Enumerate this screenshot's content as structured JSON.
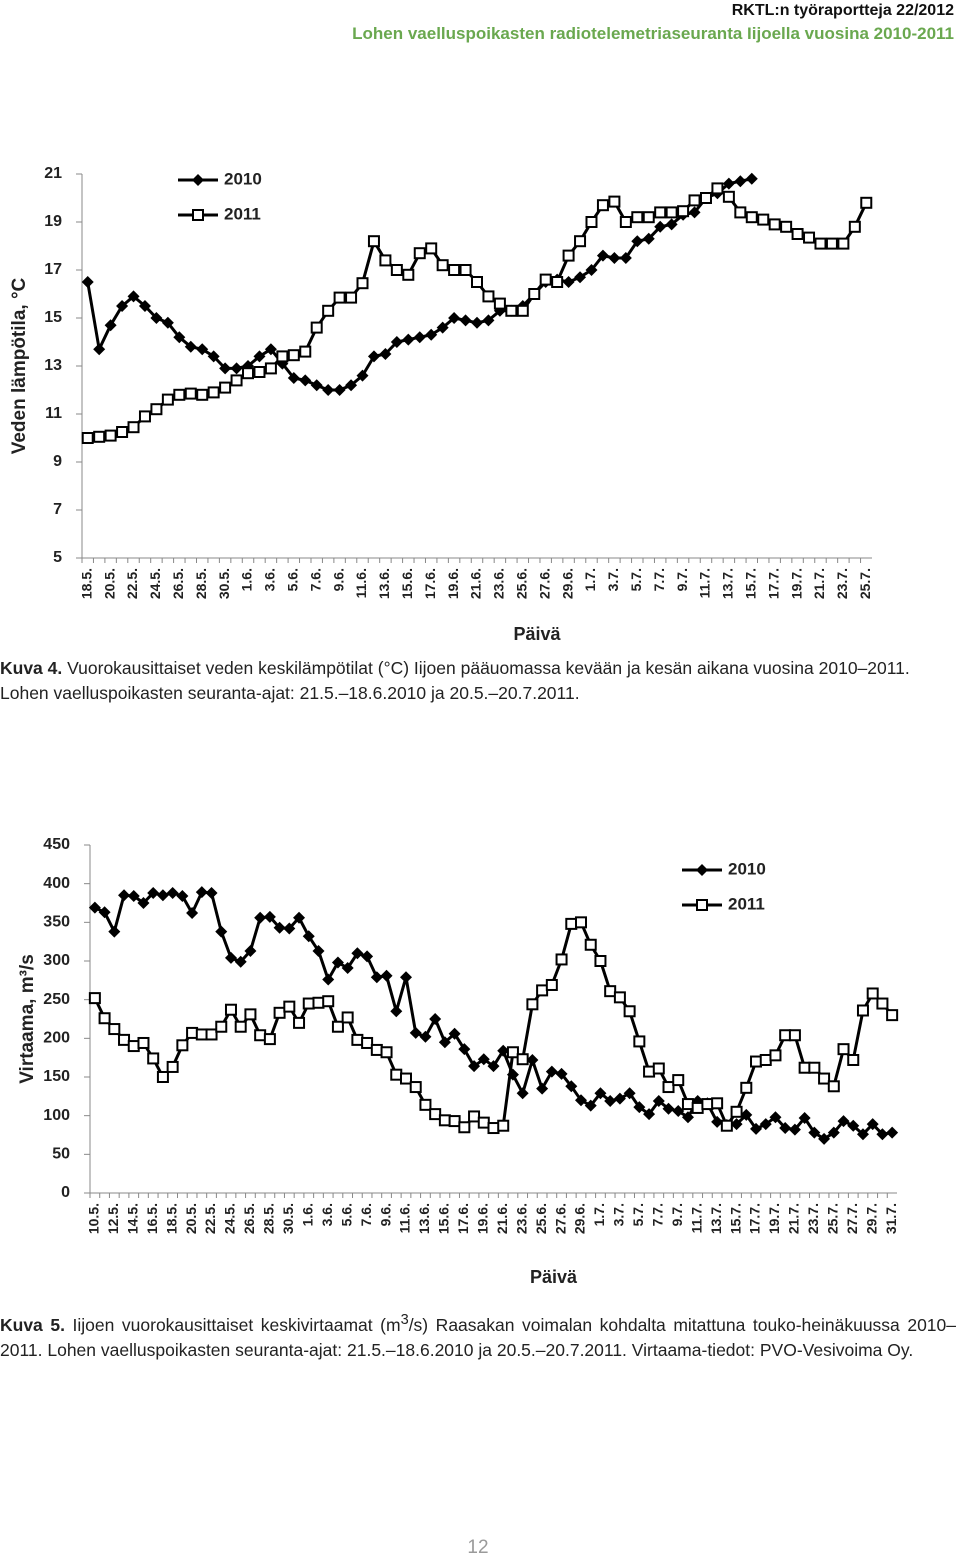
{
  "header": {
    "report": "RKTL:n työraportteja 22/2012",
    "title": "Lohen vaelluspoikasten radiotelemetriaseuranta Iijoella vuosina 2010-2011"
  },
  "chart_data": [
    {
      "type": "line",
      "ylabel": "Veden lämpötila, °C",
      "xlabel": "Päivä",
      "categories": [
        "18.5.",
        null,
        "20.5.",
        null,
        "22.5.",
        null,
        "24.5.",
        null,
        "26.5.",
        null,
        "28.5.",
        null,
        "30.5.",
        null,
        "1.6.",
        null,
        "3.6.",
        null,
        "5.6.",
        null,
        "7.6.",
        null,
        "9.6.",
        null,
        "11.6.",
        null,
        "13.6.",
        null,
        "15.6.",
        null,
        "17.6.",
        null,
        "19.6.",
        null,
        "21.6.",
        null,
        "23.6.",
        null,
        "25.6.",
        null,
        "27.6.",
        null,
        "29.6.",
        null,
        "1.7.",
        null,
        "3.7.",
        null,
        "5.7.",
        null,
        "7.7.",
        null,
        "9.7.",
        null,
        "11.7.",
        null,
        "13.7.",
        null,
        "15.7.",
        null,
        "17.7.",
        null,
        "19.7.",
        null,
        "21.7.",
        null,
        "23.7.",
        null,
        "25.7."
      ],
      "series": [
        {
          "name": "2010",
          "color": "#000000",
          "marker": "diamond",
          "values": [
            16.5,
            13.7,
            14.7,
            15.5,
            15.9,
            15.5,
            15.0,
            14.8,
            14.2,
            13.8,
            13.7,
            13.4,
            12.9,
            12.9,
            13.0,
            13.4,
            13.7,
            13.1,
            12.5,
            12.4,
            12.2,
            12.0,
            12.0,
            12.2,
            12.6,
            13.4,
            13.5,
            14.0,
            14.1,
            14.2,
            14.3,
            14.6,
            15.0,
            14.9,
            14.8,
            14.9,
            15.3,
            15.3,
            15.5,
            16.0,
            16.5,
            16.6,
            16.5,
            16.7,
            17.0,
            17.6,
            17.5,
            17.5,
            18.2,
            18.3,
            18.8,
            18.9,
            19.3,
            19.4,
            20.0,
            20.2,
            20.6,
            20.7,
            20.8,
            null,
            null,
            null,
            null,
            null,
            null,
            null,
            null,
            null,
            null
          ]
        },
        {
          "name": "2011",
          "color": "#000000",
          "marker": "square",
          "values": [
            10.0,
            10.05,
            10.1,
            10.25,
            10.45,
            10.9,
            11.2,
            11.6,
            11.8,
            11.85,
            11.8,
            11.9,
            12.1,
            12.4,
            12.7,
            12.75,
            12.9,
            13.4,
            13.45,
            13.6,
            14.6,
            15.3,
            15.85,
            15.85,
            16.45,
            18.2,
            17.4,
            17.0,
            16.8,
            17.7,
            17.9,
            17.2,
            17.0,
            17.0,
            16.5,
            15.9,
            15.6,
            15.3,
            15.3,
            16.0,
            16.6,
            16.5,
            17.6,
            18.2,
            19.0,
            19.7,
            19.85,
            19.0,
            19.2,
            19.2,
            19.4,
            19.4,
            19.45,
            19.9,
            20.0,
            20.4,
            20.05,
            19.4,
            19.2,
            19.1,
            18.9,
            18.8,
            18.5,
            18.35,
            18.1,
            18.1,
            18.1,
            18.8,
            19.8
          ]
        }
      ],
      "ylim": [
        5,
        21
      ],
      "yticks": [
        5,
        7,
        9,
        11,
        13,
        15,
        17,
        19,
        21
      ],
      "legend": "upper left"
    },
    {
      "type": "line",
      "ylabel": "Virtaama, m³/s",
      "xlabel": "Päivä",
      "categories": [
        "10.5.",
        null,
        "12.5.",
        null,
        "14.5.",
        null,
        "16.5.",
        null,
        "18.5.",
        null,
        "20.5.",
        null,
        "22.5.",
        null,
        "24.5.",
        null,
        "26.5.",
        null,
        "28.5.",
        null,
        "30.5.",
        null,
        "1.6.",
        null,
        "3.6.",
        null,
        "5.6.",
        null,
        "7.6.",
        null,
        "9.6.",
        null,
        "11.6.",
        null,
        "13.6.",
        null,
        "15.6.",
        null,
        "17.6.",
        null,
        "19.6.",
        null,
        "21.6.",
        null,
        "23.6.",
        null,
        "25.6.",
        null,
        "27.6.",
        null,
        "29.6.",
        null,
        "1.7.",
        null,
        "3.7.",
        null,
        "5.7.",
        null,
        "7.7.",
        null,
        "9.7.",
        null,
        "11.7.",
        null,
        "13.7.",
        null,
        "15.7.",
        null,
        "17.7.",
        null,
        "19.7.",
        null,
        "21.7.",
        null,
        "23.7.",
        null,
        "25.7.",
        null,
        "27.7.",
        null,
        "29.7.",
        null,
        "31.7."
      ],
      "series": [
        {
          "name": "2010",
          "color": "#000000",
          "marker": "diamond",
          "values": [
            369,
            363,
            338,
            385,
            384,
            375,
            388,
            385,
            388,
            384,
            362,
            389,
            388,
            338,
            304,
            299,
            313,
            356,
            357,
            343,
            342,
            356,
            332,
            313,
            276,
            298,
            291,
            310,
            306,
            279,
            281,
            235,
            279,
            207,
            202,
            225,
            195,
            206,
            186,
            164,
            173,
            164,
            184,
            153,
            129,
            172,
            135,
            157,
            154,
            138,
            120,
            113,
            129,
            119,
            122,
            129,
            111,
            102,
            119,
            109,
            106,
            98,
            119,
            116,
            92,
            88,
            89,
            101,
            83,
            89,
            98,
            84,
            82,
            97,
            78,
            70,
            78,
            93,
            87,
            76,
            89,
            76,
            78
          ]
        },
        {
          "name": "2011",
          "color": "#000000",
          "marker": "square",
          "values": [
            252,
            226,
            212,
            198,
            190,
            194,
            174,
            150,
            163,
            191,
            207,
            205,
            205,
            215,
            237,
            215,
            231,
            204,
            199,
            233,
            241,
            220,
            245,
            246,
            248,
            215,
            227,
            198,
            194,
            185,
            182,
            153,
            148,
            137,
            114,
            102,
            94,
            93,
            85,
            99,
            91,
            84,
            87,
            182,
            173,
            244,
            262,
            269,
            302,
            348,
            350,
            321,
            300,
            261,
            253,
            235,
            196,
            157,
            161,
            137,
            146,
            115,
            110,
            115,
            116,
            87,
            105,
            136,
            170,
            172,
            178,
            204,
            204,
            162,
            162,
            148,
            138,
            186,
            172,
            236,
            258,
            245,
            230
          ]
        }
      ],
      "ylim": [
        0,
        450
      ],
      "yticks": [
        0,
        50,
        100,
        150,
        200,
        250,
        300,
        350,
        400,
        450
      ],
      "legend": "upper right"
    }
  ],
  "captions": [
    {
      "label": "Kuva 4.",
      "parts": [
        "Vuorokausittaiset veden keskilämpötilat (°C) Iijoen pääuomassa kevään ja kesän aikana vuosina 2010–2011. Lohen vaelluspoikasten seuranta-ajat: 21.5.–18.6.2010 ja 20.5.–20.7.2011."
      ]
    },
    {
      "label": "Kuva 5.",
      "parts": [
        "Iijoen vuorokausittaiset keskivirtaamat (m",
        "3",
        "/s) Raasakan voimalan kohdalta mitattuna touko-heinäkuussa 2010–2011. Lohen vaelluspoikasten seuranta-ajat: 21.5.–18.6.2010 ja 20.5.–20.7.2011. Virtaama-tiedot: PVO-Vesivoima Oy."
      ]
    }
  ],
  "page_number": "12"
}
